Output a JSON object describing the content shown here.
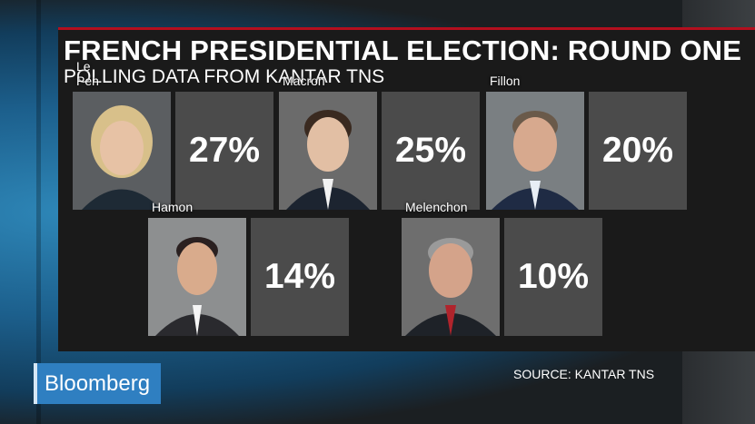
{
  "title": "FRENCH PRESIDENTIAL ELECTION: ROUND ONE",
  "subtitle": "POLLING DATA FROM KANTAR TNS",
  "source": "SOURCE: KANTAR TNS",
  "brand": "Bloomberg",
  "candidates": [
    {
      "name": "Le Pen",
      "percent": "27%",
      "hair": "#d8c08a",
      "suit": "#1e2a35"
    },
    {
      "name": "Macron",
      "percent": "25%",
      "hair": "#3a2a20",
      "suit": "#1c2430"
    },
    {
      "name": "Fillon",
      "percent": "20%",
      "hair": "#6a5a4a",
      "suit": "#1f2b44"
    },
    {
      "name": "Hamon",
      "percent": "14%",
      "hair": "#2a2020",
      "suit": "#2a2a2e"
    },
    {
      "name": "Melenchon",
      "percent": "10%",
      "hair": "#9a9a9a",
      "suit": "#1e2228"
    }
  ],
  "colors": {
    "accent": "#b30f1e",
    "panel": "#4b4b4b",
    "brand": "#2f7fc1"
  }
}
